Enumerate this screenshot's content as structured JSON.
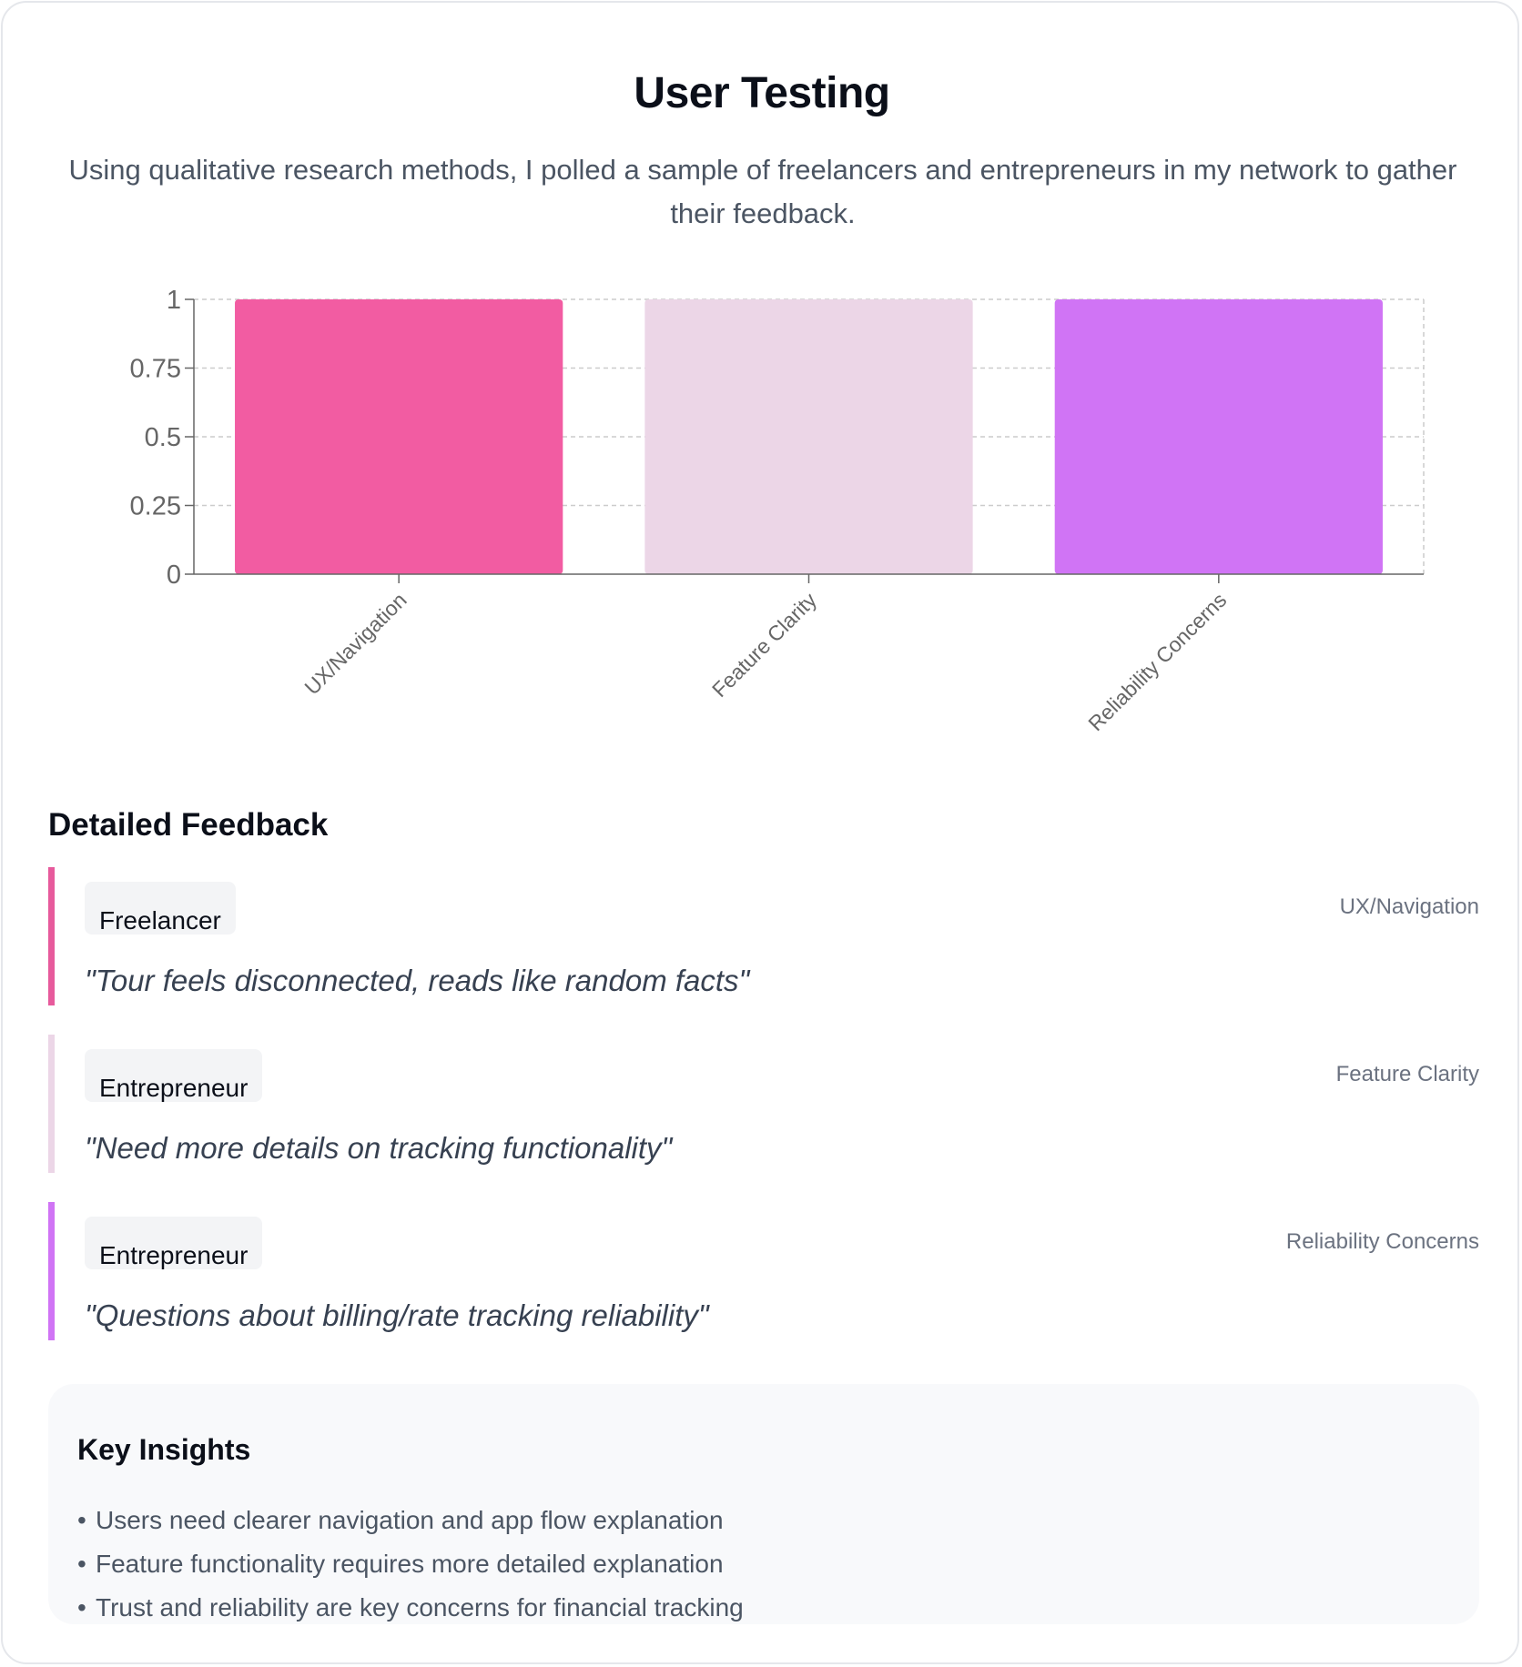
{
  "header": {
    "title": "User Testing",
    "subtitle": "Using qualitative research methods, I polled a sample of freelancers and entrepreneurs in my network to gather their feedback."
  },
  "chart_data": {
    "type": "bar",
    "title": "",
    "xlabel": "",
    "ylabel": "",
    "categories": [
      "UX/Navigation",
      "Feature Clarity",
      "Reliability Concerns"
    ],
    "values": [
      1,
      1,
      1
    ],
    "colors": [
      "#f25ca2",
      "#ecd6e7",
      "#d074f5"
    ],
    "ylim": [
      0,
      1
    ],
    "yticks": [
      "0",
      "0.25",
      "0.5",
      "0.75",
      "1"
    ],
    "grid": true,
    "legend": "none"
  },
  "feedback": {
    "title": "Detailed Feedback",
    "items": [
      {
        "role": "Freelancer",
        "category": "UX/Navigation",
        "quote": "\"Tour feels disconnected, reads like random facts\"",
        "color": "#e75a9c"
      },
      {
        "role": "Entrepreneur",
        "category": "Feature Clarity",
        "quote": "\"Need more details on tracking functionality\"",
        "color": "#ecd6e7"
      },
      {
        "role": "Entrepreneur",
        "category": "Reliability Concerns",
        "quote": "\"Questions about billing/rate tracking reliability\"",
        "color": "#d074f5"
      }
    ]
  },
  "insights": {
    "title": "Key Insights",
    "bullet": "•",
    "items": [
      "Users need clearer navigation and app flow explanation",
      "Feature functionality requires more detailed explanation",
      "Trust and reliability are key concerns for financial tracking"
    ]
  }
}
